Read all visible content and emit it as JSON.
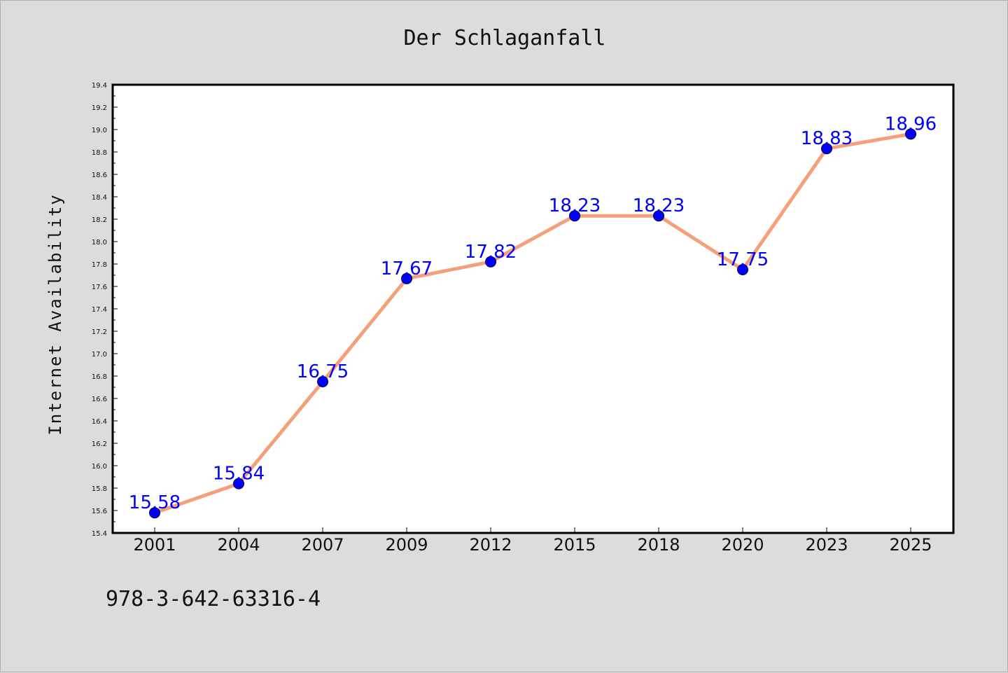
{
  "chart_data": {
    "type": "line",
    "title": "Der Schlaganfall",
    "xlabel": "",
    "ylabel": "Internet Availability",
    "categories": [
      "2001",
      "2004",
      "2007",
      "2009",
      "2012",
      "2015",
      "2018",
      "2020",
      "2023",
      "2025"
    ],
    "values": [
      15.58,
      15.84,
      16.75,
      17.67,
      17.82,
      18.23,
      18.23,
      17.75,
      18.83,
      18.96
    ],
    "data_labels": [
      "15.58",
      "15.84",
      "16.75",
      "17.67",
      "17.82",
      "18.23",
      "18.23",
      "17.75",
      "18.83",
      "18.96"
    ],
    "ylim": [
      15.4,
      19.4
    ],
    "y_ticks": [
      "15.4",
      "15.6",
      "15.8",
      "16.0",
      "16.2",
      "16.4",
      "16.6",
      "16.8",
      "17.0",
      "17.2",
      "17.4",
      "17.6",
      "17.8",
      "18.0",
      "18.2",
      "18.4",
      "18.6",
      "18.8",
      "19.0",
      "19.2",
      "19.4"
    ],
    "grid": false,
    "legend": "none",
    "line_color": "#f4a07a",
    "marker_color": "#0000ff",
    "label_color": "#0000ff"
  },
  "footer_text": "978-3-642-63316-4"
}
